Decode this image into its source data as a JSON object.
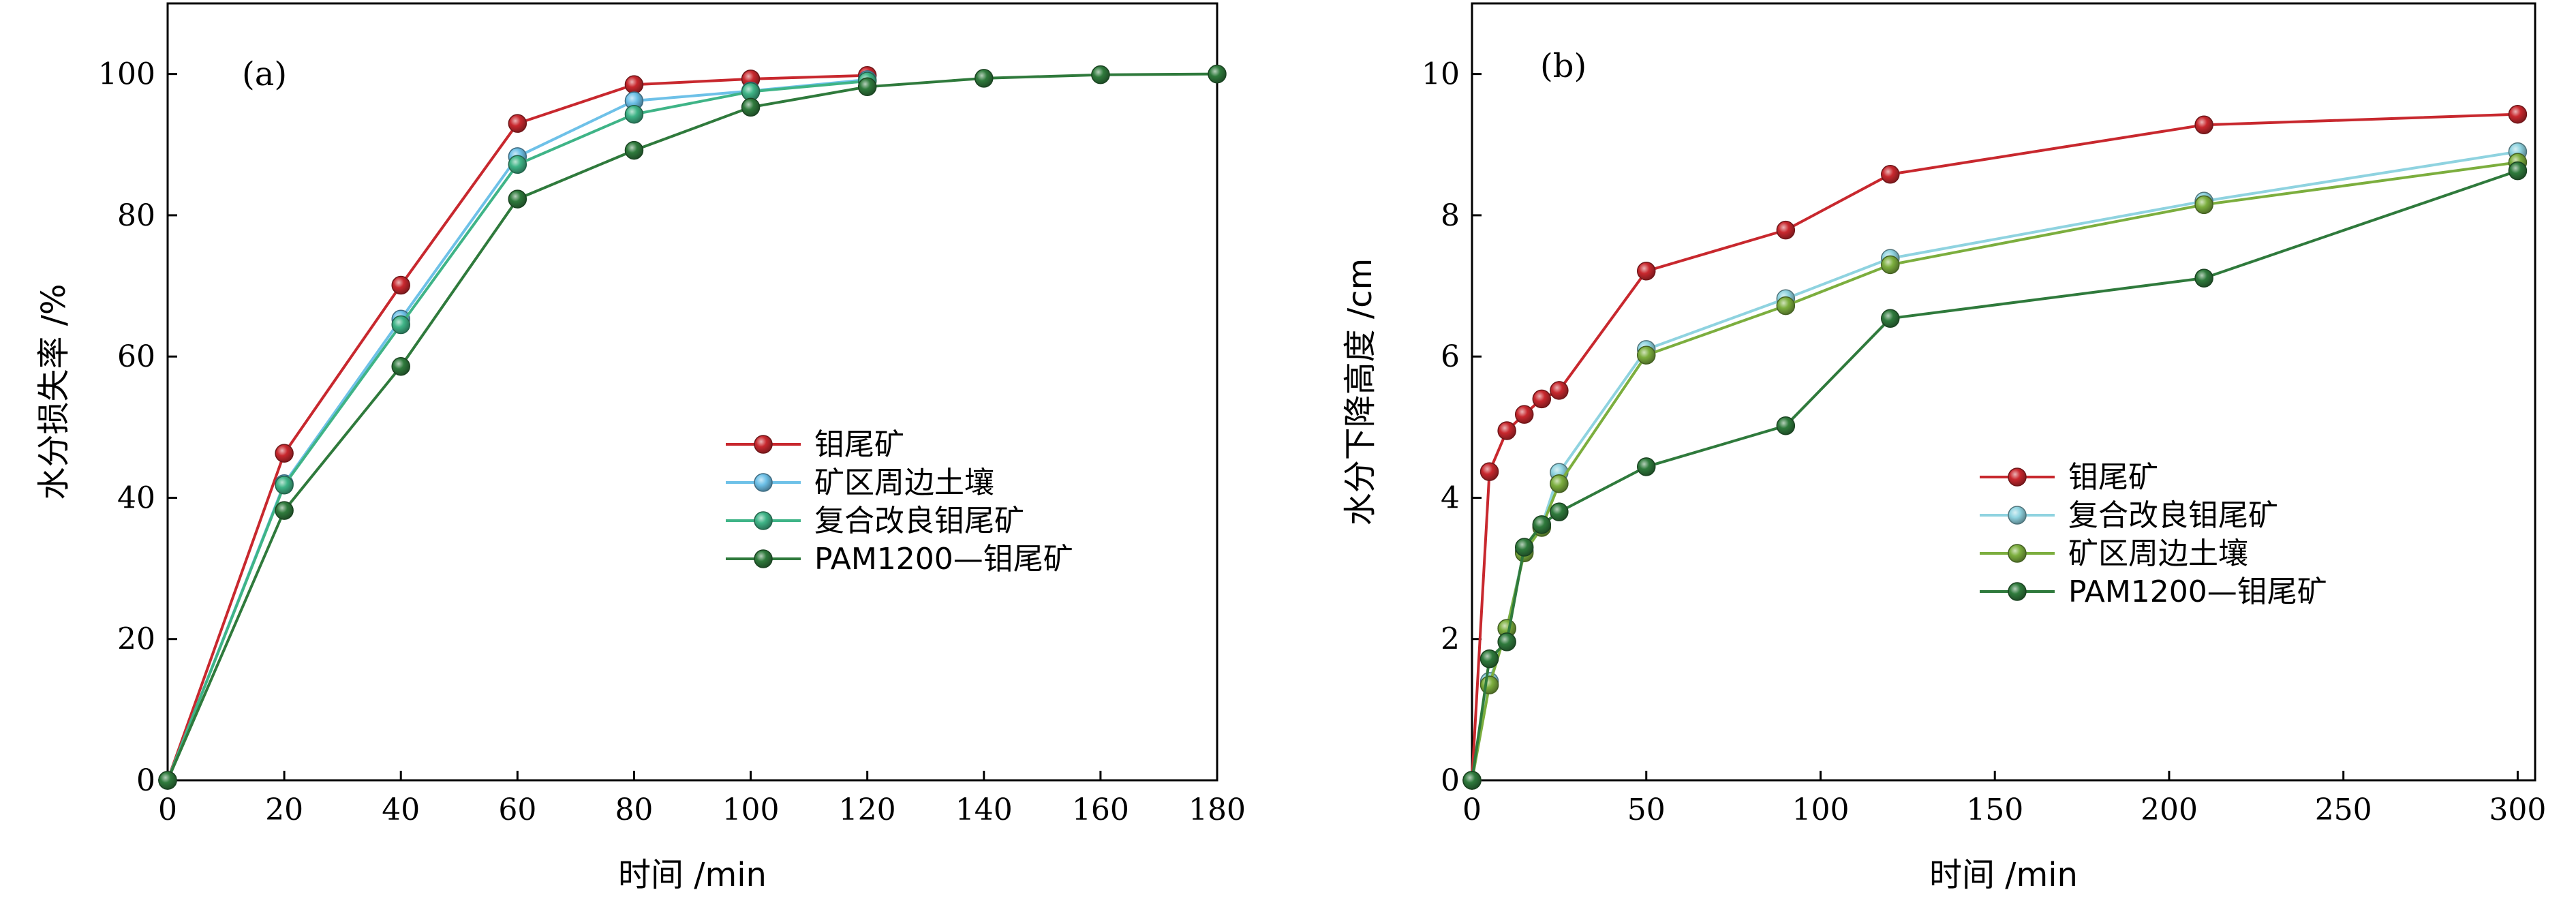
{
  "chart_data": [
    {
      "type": "line",
      "panel_label": "(a)",
      "xlabel": "时间 /min",
      "ylabel": "水分损失率 /%",
      "xlim": [
        0,
        180
      ],
      "ylim": [
        0,
        110
      ],
      "xticks": [
        0,
        20,
        40,
        60,
        80,
        100,
        120,
        140,
        160,
        180
      ],
      "yticks": [
        0,
        20,
        40,
        60,
        80,
        100
      ],
      "grid": false,
      "legend_position": "center-right",
      "series": [
        {
          "name": "钼尾矿",
          "color": "#c8282e",
          "x": [
            0,
            20,
            40,
            60,
            80,
            100,
            120
          ],
          "y": [
            0,
            46.3,
            70.1,
            93.0,
            98.5,
            99.3,
            99.8
          ]
        },
        {
          "name": "矿区周边土壤",
          "color": "#6ec1e8",
          "x": [
            0,
            20,
            40,
            60,
            80,
            100,
            120
          ],
          "y": [
            0,
            42.0,
            65.3,
            88.3,
            96.2,
            97.6,
            99.2
          ]
        },
        {
          "name": "复合改良钼尾矿",
          "color": "#3fb487",
          "x": [
            0,
            20,
            40,
            60,
            80,
            100,
            120
          ],
          "y": [
            0,
            41.8,
            64.5,
            87.2,
            94.3,
            97.5,
            99.0
          ]
        },
        {
          "name": "PAM1200—钼尾矿",
          "color": "#2f7a3c",
          "x": [
            0,
            20,
            40,
            60,
            80,
            100,
            120,
            140,
            160,
            180
          ],
          "y": [
            0,
            38.2,
            58.6,
            82.3,
            89.2,
            95.3,
            98.2,
            99.4,
            99.9,
            100.0
          ]
        }
      ]
    },
    {
      "type": "line",
      "panel_label": "(b)",
      "xlabel": "时间 /min",
      "ylabel": "水分下降高度 /cm",
      "xlim": [
        0,
        305
      ],
      "ylim": [
        0,
        11
      ],
      "xticks": [
        0,
        50,
        100,
        150,
        200,
        250,
        300
      ],
      "yticks": [
        0,
        2,
        4,
        6,
        8,
        10
      ],
      "grid": false,
      "legend_position": "center-right",
      "series": [
        {
          "name": "钼尾矿",
          "color": "#c8282e",
          "x": [
            0,
            5,
            10,
            15,
            20,
            25,
            50,
            90,
            120,
            210,
            300
          ],
          "y": [
            0,
            4.37,
            4.95,
            5.18,
            5.4,
            5.52,
            7.21,
            7.79,
            8.58,
            9.28,
            9.43
          ]
        },
        {
          "name": "复合改良钼尾矿",
          "color": "#8fd3e0",
          "x": [
            0,
            5,
            10,
            15,
            20,
            25,
            50,
            90,
            120,
            210,
            300
          ],
          "y": [
            0,
            1.4,
            2.15,
            3.25,
            3.6,
            4.36,
            6.1,
            6.82,
            7.39,
            8.2,
            8.9
          ]
        },
        {
          "name": "矿区周边土壤",
          "color": "#7cae3e",
          "x": [
            0,
            5,
            10,
            15,
            20,
            25,
            50,
            90,
            120,
            210,
            300
          ],
          "y": [
            0,
            1.35,
            2.15,
            3.22,
            3.58,
            4.2,
            6.02,
            6.72,
            7.3,
            8.15,
            8.75
          ]
        },
        {
          "name": "PAM1200—钼尾矿",
          "color": "#2f7a3c",
          "x": [
            0,
            5,
            10,
            15,
            20,
            25,
            50,
            90,
            120,
            210,
            300
          ],
          "y": [
            0,
            1.72,
            1.96,
            3.3,
            3.62,
            3.8,
            4.44,
            5.02,
            6.54,
            7.11,
            8.63
          ]
        }
      ]
    }
  ]
}
